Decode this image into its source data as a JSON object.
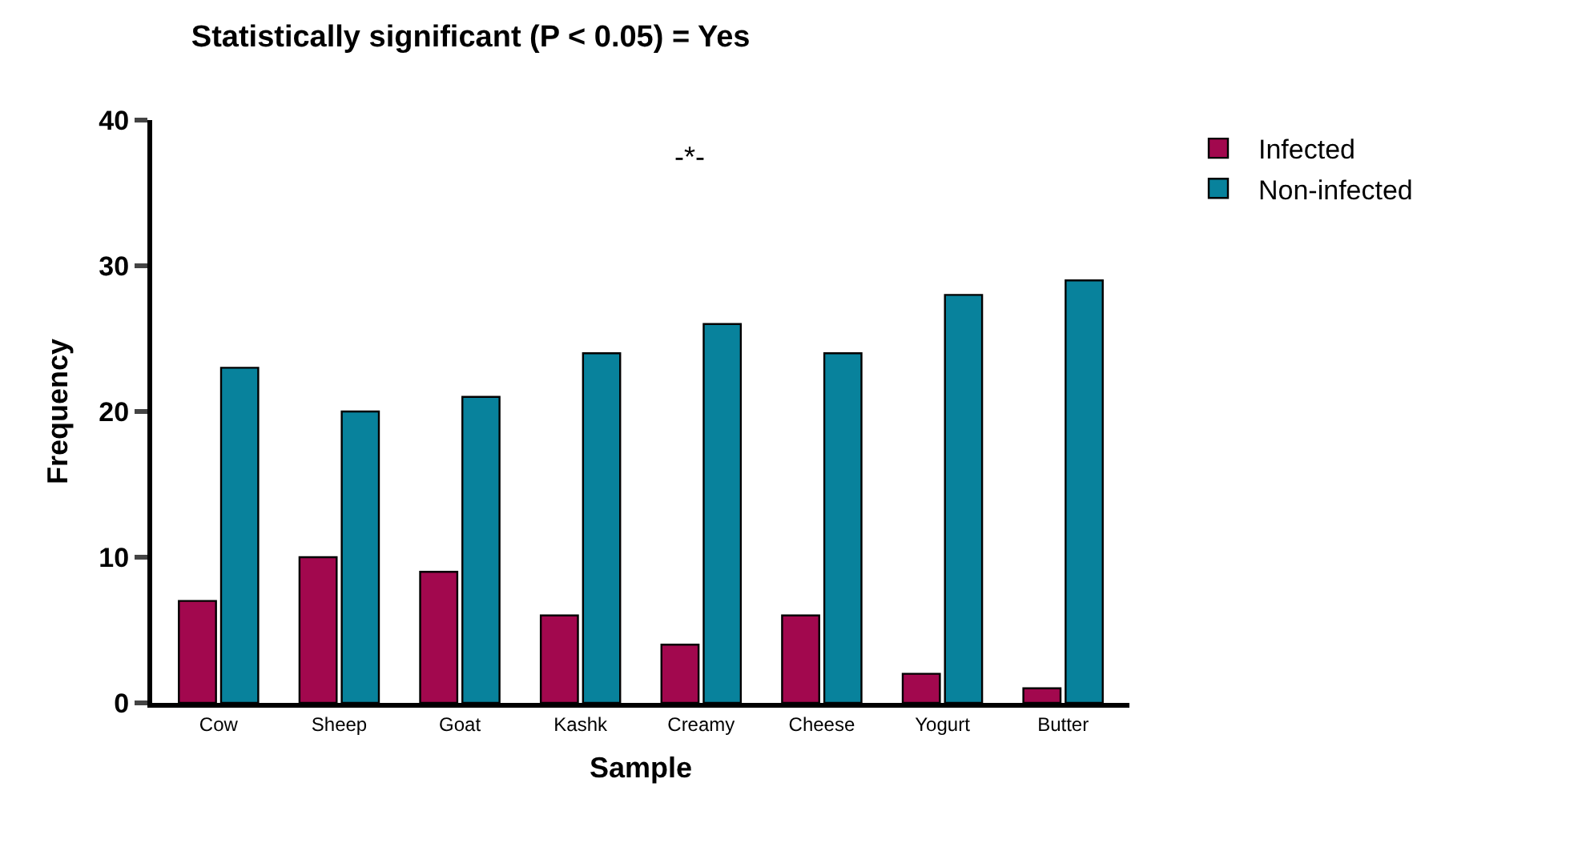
{
  "chart_data": {
    "type": "bar",
    "title": "Statistically significant (P < 0.05) = Yes",
    "xlabel": "Sample",
    "ylabel": "Frequency",
    "categories": [
      "Cow",
      "Sheep",
      "Goat",
      "Kashk",
      "Creamy",
      "Cheese",
      "Yogurt",
      "Butter"
    ],
    "series": [
      {
        "name": "Infected",
        "color": "#a2084e",
        "values": [
          7,
          10,
          9,
          6,
          4,
          6,
          2,
          1
        ]
      },
      {
        "name": "Non-infected",
        "color": "#08829c",
        "values": [
          23,
          20,
          21,
          24,
          26,
          24,
          28,
          29
        ]
      }
    ],
    "ylim": [
      0,
      40
    ],
    "yticks": [
      0,
      10,
      20,
      30,
      40
    ],
    "grid": false,
    "legend": "top right",
    "annotations": [
      "-*-"
    ]
  }
}
